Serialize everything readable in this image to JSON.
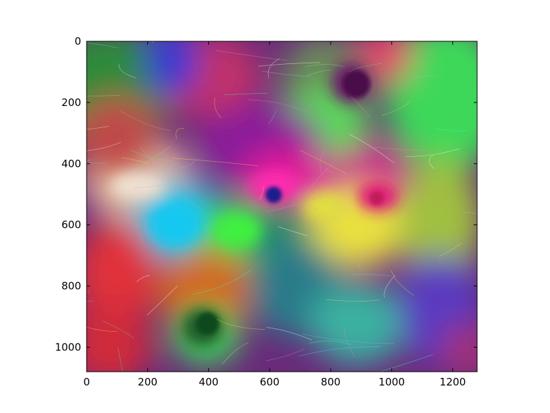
{
  "chart_data": {
    "type": "heatmap",
    "title": "",
    "xlabel": "",
    "ylabel": "",
    "xlim": [
      0,
      1280
    ],
    "ylim": [
      1080,
      0
    ],
    "x_ticks": [
      0,
      200,
      400,
      600,
      800,
      1000,
      1200
    ],
    "y_ticks": [
      0,
      200,
      400,
      600,
      800,
      1000
    ],
    "x_tick_labels": [
      "0",
      "200",
      "400",
      "600",
      "800",
      "1000",
      "1200"
    ],
    "y_tick_labels": [
      "0",
      "200",
      "400",
      "600",
      "800",
      "1000"
    ],
    "grid": false,
    "image_content": "kaleidoscopic multicolored photo of a furry animal face with whiskers (overlaid mirrored copies)",
    "colors": {
      "green": "#3cd85a",
      "magenta": "#d0208c",
      "red": "#e0303a",
      "blue": "#3a3ad0",
      "cyan": "#22c0e0",
      "yellow": "#e8e040",
      "purple": "#7a2a9a"
    }
  }
}
